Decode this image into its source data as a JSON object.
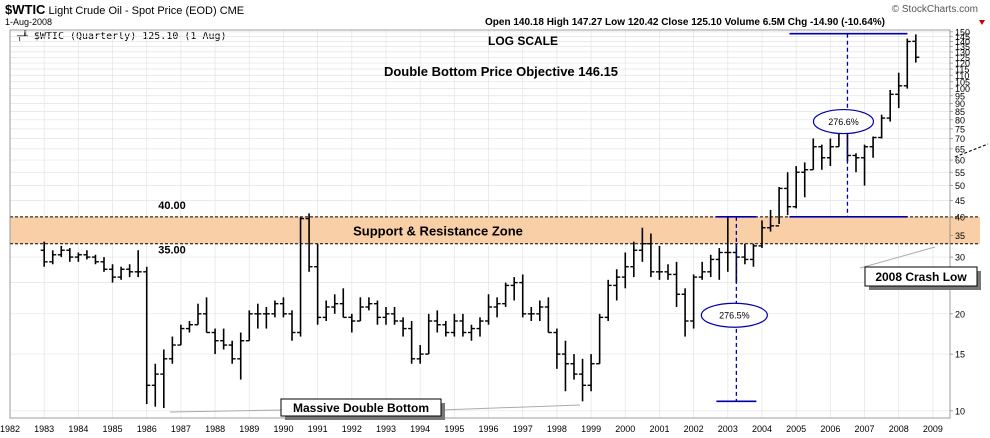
{
  "header": {
    "symbol": "$WTIC",
    "name": "Light Crude Oil - Spot Price (EOD)",
    "exchange": "CME",
    "date": "1-Aug-2008",
    "brand": "© StockCharts.com",
    "ohlc_line": "Open 140.18  High 147.27  Low 120.42  Close 125.10  Volume 6.5M  Chg -14.90 (-10.64%)",
    "legend_label": "$WTIC (Quarterly) 125.10 (1 Aug)"
  },
  "colors": {
    "price_bar": "#000000",
    "zone_fill": "#f8cfa6",
    "projection": "#0000aa",
    "grid": "#e4e4e4"
  },
  "chart_data": {
    "type": "ohlc",
    "title": "Double Bottom Price Objective 146.15",
    "subtitle": "LOG SCALE",
    "y_scale": "log",
    "ylim": [
      9.5,
      152
    ],
    "xlim": [
      1982.0,
      2009.5
    ],
    "grid": true,
    "y_ticks": [
      150,
      145,
      140,
      135,
      130,
      125,
      120,
      115,
      110,
      105,
      100,
      95,
      90,
      85,
      80,
      75,
      70,
      65,
      60,
      55,
      50,
      45,
      40,
      35,
      30,
      25,
      20,
      15,
      10
    ],
    "x_ticks": [
      "1982",
      "1983",
      "1984",
      "1985",
      "1986",
      "1987",
      "1988",
      "1989",
      "1990",
      "1991",
      "1992",
      "1993",
      "1994",
      "1995",
      "1996",
      "1997",
      "1998",
      "1999",
      "2000",
      "2001",
      "2002",
      "2003",
      "2004",
      "2005",
      "2006",
      "2007",
      "2008",
      "2009"
    ],
    "series": [
      {
        "values": [
          {
            "t": 1983.0,
            "o": 31.5,
            "h": 33.5,
            "l": 28,
            "c": 29
          },
          {
            "t": 1983.25,
            "o": 29,
            "h": 31.5,
            "l": 28.5,
            "c": 30.5
          },
          {
            "t": 1983.5,
            "o": 30.5,
            "h": 32.5,
            "l": 30,
            "c": 31.5
          },
          {
            "t": 1983.75,
            "o": 31.5,
            "h": 32,
            "l": 29,
            "c": 30
          },
          {
            "t": 1984.0,
            "o": 30,
            "h": 31,
            "l": 29,
            "c": 30.5
          },
          {
            "t": 1984.25,
            "o": 30.5,
            "h": 31.5,
            "l": 29.5,
            "c": 30
          },
          {
            "t": 1984.5,
            "o": 30,
            "h": 30.5,
            "l": 28.5,
            "c": 29
          },
          {
            "t": 1984.75,
            "o": 29,
            "h": 30,
            "l": 27,
            "c": 27.5
          },
          {
            "t": 1985.0,
            "o": 27.5,
            "h": 28.5,
            "l": 25,
            "c": 26
          },
          {
            "t": 1985.25,
            "o": 26,
            "h": 28,
            "l": 25.5,
            "c": 27.5
          },
          {
            "t": 1985.5,
            "o": 27.5,
            "h": 28.5,
            "l": 26,
            "c": 27
          },
          {
            "t": 1985.75,
            "o": 27,
            "h": 31.5,
            "l": 26,
            "c": 27
          },
          {
            "t": 1986.0,
            "o": 27,
            "h": 28,
            "l": 10.5,
            "c": 12
          },
          {
            "t": 1986.25,
            "o": 12,
            "h": 14,
            "l": 10.3,
            "c": 13
          },
          {
            "t": 1986.5,
            "o": 13,
            "h": 15.5,
            "l": 10.2,
            "c": 14.5
          },
          {
            "t": 1986.75,
            "o": 14.5,
            "h": 17,
            "l": 14,
            "c": 16
          },
          {
            "t": 1987.0,
            "o": 16,
            "h": 18.5,
            "l": 16,
            "c": 18
          },
          {
            "t": 1987.25,
            "o": 18,
            "h": 19,
            "l": 17.5,
            "c": 18.5
          },
          {
            "t": 1987.5,
            "o": 18.5,
            "h": 21.5,
            "l": 18.5,
            "c": 20
          },
          {
            "t": 1987.75,
            "o": 20,
            "h": 22.5,
            "l": 17.5,
            "c": 17.5
          },
          {
            "t": 1988.0,
            "o": 17.5,
            "h": 18,
            "l": 15,
            "c": 16.5
          },
          {
            "t": 1988.25,
            "o": 16.5,
            "h": 18,
            "l": 15.5,
            "c": 16
          },
          {
            "t": 1988.5,
            "o": 16,
            "h": 16.5,
            "l": 14,
            "c": 14.5
          },
          {
            "t": 1988.75,
            "o": 14.5,
            "h": 17.5,
            "l": 12.5,
            "c": 16.5
          },
          {
            "t": 1989.0,
            "o": 16.5,
            "h": 20.5,
            "l": 16.5,
            "c": 20
          },
          {
            "t": 1989.25,
            "o": 20,
            "h": 21.5,
            "l": 18,
            "c": 20
          },
          {
            "t": 1989.5,
            "o": 20,
            "h": 21,
            "l": 18,
            "c": 20
          },
          {
            "t": 1989.75,
            "o": 20,
            "h": 22,
            "l": 19.5,
            "c": 21.5
          },
          {
            "t": 1990.0,
            "o": 21.5,
            "h": 22.5,
            "l": 19.5,
            "c": 20
          },
          {
            "t": 1990.25,
            "o": 20,
            "h": 20.5,
            "l": 16.5,
            "c": 17.5
          },
          {
            "t": 1990.5,
            "o": 17.5,
            "h": 40,
            "l": 17,
            "c": 39.5
          },
          {
            "t": 1990.75,
            "o": 39.5,
            "h": 41,
            "l": 27,
            "c": 28
          },
          {
            "t": 1991.0,
            "o": 28,
            "h": 33,
            "l": 18.5,
            "c": 19.5
          },
          {
            "t": 1991.25,
            "o": 19.5,
            "h": 22,
            "l": 19,
            "c": 21
          },
          {
            "t": 1991.5,
            "o": 21,
            "h": 23,
            "l": 20,
            "c": 21.5
          },
          {
            "t": 1991.75,
            "o": 21.5,
            "h": 24,
            "l": 19.5,
            "c": 19.5
          },
          {
            "t": 1992.0,
            "o": 19.5,
            "h": 20,
            "l": 17.5,
            "c": 19
          },
          {
            "t": 1992.25,
            "o": 19,
            "h": 22.5,
            "l": 19,
            "c": 21
          },
          {
            "t": 1992.5,
            "o": 21,
            "h": 22.5,
            "l": 20.5,
            "c": 21.5
          },
          {
            "t": 1992.75,
            "o": 21.5,
            "h": 22,
            "l": 18.5,
            "c": 19.5
          },
          {
            "t": 1993.0,
            "o": 19.5,
            "h": 21,
            "l": 18.5,
            "c": 20
          },
          {
            "t": 1993.25,
            "o": 20,
            "h": 21,
            "l": 18.5,
            "c": 19
          },
          {
            "t": 1993.5,
            "o": 19,
            "h": 19.5,
            "l": 17,
            "c": 18
          },
          {
            "t": 1993.75,
            "o": 18,
            "h": 19,
            "l": 14,
            "c": 14.5
          },
          {
            "t": 1994.0,
            "o": 14.5,
            "h": 16,
            "l": 14,
            "c": 15
          },
          {
            "t": 1994.25,
            "o": 15,
            "h": 20,
            "l": 15,
            "c": 19
          },
          {
            "t": 1994.5,
            "o": 19,
            "h": 20.5,
            "l": 17.5,
            "c": 18.5
          },
          {
            "t": 1994.75,
            "o": 18.5,
            "h": 19,
            "l": 17,
            "c": 17.5
          },
          {
            "t": 1995.0,
            "o": 17.5,
            "h": 20,
            "l": 17,
            "c": 19
          },
          {
            "t": 1995.25,
            "o": 19,
            "h": 20,
            "l": 17,
            "c": 17.5
          },
          {
            "t": 1995.5,
            "o": 17.5,
            "h": 18.5,
            "l": 16.5,
            "c": 18
          },
          {
            "t": 1995.75,
            "o": 18,
            "h": 19.5,
            "l": 17,
            "c": 19
          },
          {
            "t": 1996.0,
            "o": 19,
            "h": 23,
            "l": 18.5,
            "c": 21
          },
          {
            "t": 1996.25,
            "o": 21,
            "h": 22.5,
            "l": 19.5,
            "c": 21.5
          },
          {
            "t": 1996.5,
            "o": 21.5,
            "h": 25,
            "l": 21,
            "c": 24.5
          },
          {
            "t": 1996.75,
            "o": 24.5,
            "h": 26,
            "l": 22,
            "c": 25
          },
          {
            "t": 1997.0,
            "o": 25,
            "h": 26.5,
            "l": 19.5,
            "c": 20
          },
          {
            "t": 1997.25,
            "o": 20,
            "h": 21,
            "l": 19,
            "c": 20
          },
          {
            "t": 1997.5,
            "o": 20,
            "h": 22,
            "l": 19,
            "c": 21
          },
          {
            "t": 1997.75,
            "o": 21,
            "h": 22.5,
            "l": 17.5,
            "c": 17.5
          },
          {
            "t": 1998.0,
            "o": 17.5,
            "h": 18,
            "l": 13.5,
            "c": 15
          },
          {
            "t": 1998.25,
            "o": 15,
            "h": 16.5,
            "l": 11.5,
            "c": 14
          },
          {
            "t": 1998.5,
            "o": 14,
            "h": 15,
            "l": 12.5,
            "c": 13
          },
          {
            "t": 1998.75,
            "o": 13,
            "h": 14.5,
            "l": 10.7,
            "c": 12
          },
          {
            "t": 1999.0,
            "o": 12,
            "h": 15,
            "l": 11.5,
            "c": 14
          },
          {
            "t": 1999.25,
            "o": 14,
            "h": 20,
            "l": 14,
            "c": 19.5
          },
          {
            "t": 1999.5,
            "o": 19.5,
            "h": 25.5,
            "l": 19,
            "c": 24.5
          },
          {
            "t": 1999.75,
            "o": 24.5,
            "h": 27.5,
            "l": 22,
            "c": 26
          },
          {
            "t": 2000.0,
            "o": 26,
            "h": 31,
            "l": 24,
            "c": 28
          },
          {
            "t": 2000.25,
            "o": 28,
            "h": 33.5,
            "l": 26,
            "c": 31.5
          },
          {
            "t": 2000.5,
            "o": 31.5,
            "h": 37,
            "l": 29,
            "c": 33
          },
          {
            "t": 2000.75,
            "o": 33,
            "h": 35.5,
            "l": 26,
            "c": 27
          },
          {
            "t": 2001.0,
            "o": 27,
            "h": 32.5,
            "l": 25.5,
            "c": 27
          },
          {
            "t": 2001.25,
            "o": 27,
            "h": 28.5,
            "l": 25.5,
            "c": 26.5
          },
          {
            "t": 2001.5,
            "o": 26.5,
            "h": 29,
            "l": 21,
            "c": 23
          },
          {
            "t": 2001.75,
            "o": 23,
            "h": 24,
            "l": 17,
            "c": 19
          },
          {
            "t": 2002.0,
            "o": 19,
            "h": 26.5,
            "l": 18,
            "c": 26
          },
          {
            "t": 2002.25,
            "o": 26,
            "h": 29,
            "l": 25.5,
            "c": 27
          },
          {
            "t": 2002.5,
            "o": 27,
            "h": 30.5,
            "l": 26,
            "c": 29.5
          },
          {
            "t": 2002.75,
            "o": 29.5,
            "h": 32,
            "l": 25.5,
            "c": 31
          },
          {
            "t": 2003.0,
            "o": 31,
            "h": 40,
            "l": 27,
            "c": 31
          },
          {
            "t": 2003.25,
            "o": 31,
            "h": 33,
            "l": 25,
            "c": 30
          },
          {
            "t": 2003.5,
            "o": 30,
            "h": 33,
            "l": 28.5,
            "c": 29.5
          },
          {
            "t": 2003.75,
            "o": 29.5,
            "h": 33,
            "l": 28,
            "c": 32.5
          },
          {
            "t": 2004.0,
            "o": 32.5,
            "h": 39,
            "l": 32,
            "c": 37
          },
          {
            "t": 2004.25,
            "o": 37,
            "h": 42,
            "l": 36,
            "c": 37.5
          },
          {
            "t": 2004.5,
            "o": 37.5,
            "h": 49.5,
            "l": 38,
            "c": 49
          },
          {
            "t": 2004.75,
            "o": 49,
            "h": 55,
            "l": 40.5,
            "c": 43
          },
          {
            "t": 2005.0,
            "o": 43,
            "h": 57.5,
            "l": 42.5,
            "c": 55
          },
          {
            "t": 2005.25,
            "o": 55,
            "h": 59,
            "l": 46,
            "c": 56
          },
          {
            "t": 2005.5,
            "o": 56,
            "h": 70,
            "l": 56,
            "c": 66
          },
          {
            "t": 2005.75,
            "o": 66,
            "h": 67,
            "l": 56,
            "c": 61
          },
          {
            "t": 2006.0,
            "o": 61,
            "h": 70,
            "l": 57.5,
            "c": 66
          },
          {
            "t": 2006.25,
            "o": 66,
            "h": 75,
            "l": 66,
            "c": 73
          },
          {
            "t": 2006.5,
            "o": 73,
            "h": 78,
            "l": 59.5,
            "c": 62
          },
          {
            "t": 2006.75,
            "o": 62,
            "h": 63,
            "l": 55,
            "c": 61
          },
          {
            "t": 2007.0,
            "o": 61,
            "h": 67,
            "l": 50,
            "c": 66
          },
          {
            "t": 2007.25,
            "o": 66,
            "h": 71,
            "l": 61,
            "c": 70.5
          },
          {
            "t": 2007.5,
            "o": 70.5,
            "h": 83,
            "l": 70,
            "c": 81
          },
          {
            "t": 2007.75,
            "o": 81,
            "h": 99,
            "l": 79,
            "c": 96
          },
          {
            "t": 2008.0,
            "o": 96,
            "h": 112,
            "l": 87,
            "c": 102
          },
          {
            "t": 2008.25,
            "o": 102,
            "h": 143,
            "l": 100,
            "c": 140
          },
          {
            "t": 2008.5,
            "o": 140.18,
            "h": 147.27,
            "l": 120.42,
            "c": 125.1
          }
        ]
      }
    ],
    "annotations": {
      "zone_label": "Support & Resistance Zone",
      "zone_top": 40,
      "zone_bottom": 33,
      "label_40": "40.00",
      "label_35": "35.00",
      "double_bottom": "Massive Double Bottom",
      "crash_low": "2008 Crash Low",
      "pct_lower": "276.5%",
      "pct_upper": "276.6%",
      "proj_lower_x": 2003.25,
      "proj_lower_top": 40,
      "proj_lower_bottom": 10.7,
      "proj_upper_x": 2006.5,
      "proj_upper_top": 148,
      "proj_upper_bottom": 40
    }
  }
}
